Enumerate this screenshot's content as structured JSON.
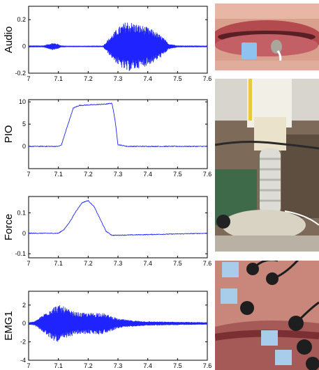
{
  "chart_data": [
    {
      "type": "line",
      "ylabel": "Audio",
      "xlim": [
        7.0,
        7.6
      ],
      "ylim": [
        -0.2,
        0.3
      ],
      "xticks": [
        "7",
        "7.1",
        "7.2",
        "7.3",
        "7.4",
        "7.5",
        "7.6"
      ],
      "yticks": [
        "-0.2",
        "0",
        "0.2"
      ],
      "series": [
        {
          "color": "#1f24ff",
          "envelope": {
            "x": [
              7.0,
              7.05,
              7.08,
              7.095,
              7.11,
              7.13,
              7.18,
              7.25,
              7.27,
              7.3,
              7.33,
              7.36,
              7.39,
              7.42,
              7.45,
              7.47,
              7.5,
              7.6
            ],
            "amp": [
              0.005,
              0.005,
              0.025,
              0.02,
              0.005,
              0.003,
              0.003,
              0.004,
              0.06,
              0.14,
              0.19,
              0.17,
              0.15,
              0.12,
              0.07,
              0.02,
              0.005,
              0.004
            ]
          }
        }
      ]
    },
    {
      "type": "line",
      "ylabel": "PIO",
      "xlim": [
        7.0,
        7.6
      ],
      "ylim": [
        -5,
        10.5
      ],
      "xticks": [
        "7",
        "7.1",
        "7.2",
        "7.3",
        "7.4",
        "7.5",
        "7.6"
      ],
      "yticks": [
        "0",
        "5",
        "10"
      ],
      "series": [
        {
          "color": "#1f24ff",
          "x": [
            7.0,
            7.1,
            7.11,
            7.13,
            7.15,
            7.17,
            7.2,
            7.23,
            7.26,
            7.28,
            7.29,
            7.3,
            7.33,
            7.6
          ],
          "y": [
            0,
            0,
            0.3,
            4.5,
            8.6,
            9.2,
            9.3,
            9.4,
            9.5,
            9.7,
            6.0,
            0.4,
            0,
            0
          ]
        }
      ]
    },
    {
      "type": "line",
      "ylabel": "Force",
      "xlim": [
        7.0,
        7.6
      ],
      "ylim": [
        -0.12,
        0.18
      ],
      "xticks": [
        "7",
        "7.1",
        "7.2",
        "7.3",
        "7.4",
        "7.5",
        "7.6"
      ],
      "yticks": [
        "-0.1",
        "0",
        "0.1"
      ],
      "series": [
        {
          "color": "#1f24ff",
          "x": [
            7.0,
            7.1,
            7.12,
            7.14,
            7.16,
            7.18,
            7.2,
            7.22,
            7.24,
            7.26,
            7.28,
            7.6
          ],
          "y": [
            0,
            0,
            0.02,
            0.06,
            0.11,
            0.15,
            0.16,
            0.13,
            0.07,
            0.01,
            -0.01,
            0
          ]
        }
      ]
    },
    {
      "type": "line",
      "ylabel": "EMG1",
      "xlim": [
        7.0,
        7.6
      ],
      "ylim": [
        -4,
        3.5
      ],
      "xticks": [
        "7",
        "7.1",
        "7.2",
        "7.3",
        "7.4",
        "7.5",
        "7.6"
      ],
      "yticks": [
        "-4",
        "-2",
        "0",
        "2"
      ],
      "series": [
        {
          "color": "#1f24ff",
          "envelope": {
            "x": [
              7.0,
              7.02,
              7.04,
              7.06,
              7.08,
              7.1,
              7.12,
              7.14,
              7.16,
              7.2,
              7.24,
              7.27,
              7.3,
              7.35,
              7.4,
              7.5,
              7.6
            ],
            "amp": [
              0.1,
              0.2,
              0.7,
              1.3,
              1.8,
              2.0,
              1.8,
              1.4,
              1.2,
              1.1,
              1.2,
              0.9,
              0.5,
              0.3,
              0.2,
              0.15,
              0.1
            ]
          }
        }
      ]
    }
  ]
}
